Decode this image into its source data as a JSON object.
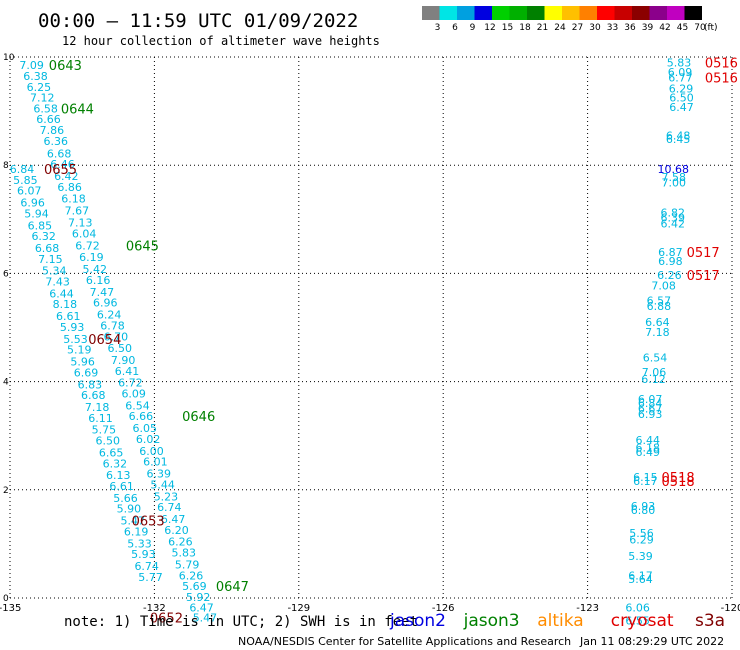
{
  "header": {
    "title": "00:00 – 11:59 UTC 01/09/2022",
    "subtitle": "12 hour collection of altimeter wave heights"
  },
  "colorbar": {
    "unit": "(ft)",
    "labels": [
      "3",
      "6",
      "9",
      "12",
      "15",
      "18",
      "21",
      "24",
      "27",
      "30",
      "33",
      "36",
      "39",
      "42",
      "45",
      "70"
    ],
    "colors": [
      "#808080",
      "#00e5e5",
      "#00a0e0",
      "#0000e0",
      "#00d000",
      "#00b000",
      "#008000",
      "#ffff00",
      "#ffc000",
      "#ff8000",
      "#ff0000",
      "#c80000",
      "#8b0000",
      "#8b008b",
      "#c000c0",
      "#000000"
    ]
  },
  "chart_data": {
    "type": "scatter",
    "xlim": [
      -135,
      -120
    ],
    "ylim": [
      0,
      10
    ],
    "x_ticks": [
      "-135",
      "-132",
      "-129",
      "-126",
      "-123",
      "-120"
    ],
    "y_ticks": [
      "0",
      "2",
      "4",
      "6",
      "8",
      "10"
    ],
    "grid": true,
    "points": [
      {
        "x": -134.55,
        "y": 9.85,
        "v": "7.09",
        "c": "#00b8e0"
      },
      {
        "x": -134.47,
        "y": 9.65,
        "v": "6.38",
        "c": "#00b8e0"
      },
      {
        "x": -134.4,
        "y": 9.45,
        "v": "6.25",
        "c": "#00b8e0"
      },
      {
        "x": -134.33,
        "y": 9.25,
        "v": "7.12",
        "c": "#00b8e0"
      },
      {
        "x": -134.26,
        "y": 9.05,
        "v": "6.58",
        "c": "#00b8e0"
      },
      {
        "x": -134.2,
        "y": 8.85,
        "v": "6.66",
        "c": "#00b8e0"
      },
      {
        "x": -134.13,
        "y": 8.65,
        "v": "7.86",
        "c": "#00b8e0"
      },
      {
        "x": -134.05,
        "y": 8.45,
        "v": "6.36",
        "c": "#00b8e0"
      },
      {
        "x": -133.98,
        "y": 8.22,
        "v": "6.68",
        "c": "#00b8e0"
      },
      {
        "x": -133.91,
        "y": 8.02,
        "v": "6.46",
        "c": "#00b8e0"
      },
      {
        "x": -133.83,
        "y": 7.8,
        "v": "6.42",
        "c": "#00b8e0"
      },
      {
        "x": -133.76,
        "y": 7.6,
        "v": "6.86",
        "c": "#00b8e0"
      },
      {
        "x": -133.68,
        "y": 7.38,
        "v": "6.18",
        "c": "#00b8e0"
      },
      {
        "x": -133.61,
        "y": 7.16,
        "v": "7.67",
        "c": "#00b8e0"
      },
      {
        "x": -133.54,
        "y": 6.94,
        "v": "7.13",
        "c": "#00b8e0"
      },
      {
        "x": -133.46,
        "y": 6.74,
        "v": "6.04",
        "c": "#00b8e0"
      },
      {
        "x": -133.39,
        "y": 6.52,
        "v": "6.72",
        "c": "#00b8e0"
      },
      {
        "x": -133.31,
        "y": 6.3,
        "v": "6.19",
        "c": "#00b8e0"
      },
      {
        "x": -133.24,
        "y": 6.08,
        "v": "5.42",
        "c": "#00b8e0"
      },
      {
        "x": -133.17,
        "y": 5.88,
        "v": "6.16",
        "c": "#00b8e0"
      },
      {
        "x": -133.09,
        "y": 5.66,
        "v": "7.47",
        "c": "#00b8e0"
      },
      {
        "x": -133.02,
        "y": 5.46,
        "v": "6.96",
        "c": "#00b8e0"
      },
      {
        "x": -132.94,
        "y": 5.24,
        "v": "6.24",
        "c": "#00b8e0"
      },
      {
        "x": -132.87,
        "y": 5.04,
        "v": "6.78",
        "c": "#00b8e0"
      },
      {
        "x": -132.8,
        "y": 4.83,
        "v": "6.70",
        "c": "#00b8e0"
      },
      {
        "x": -132.72,
        "y": 4.62,
        "v": "6.50",
        "c": "#00b8e0"
      },
      {
        "x": -132.65,
        "y": 4.4,
        "v": "7.90",
        "c": "#00b8e0"
      },
      {
        "x": -132.57,
        "y": 4.2,
        "v": "6.41",
        "c": "#00b8e0"
      },
      {
        "x": -132.5,
        "y": 3.98,
        "v": "6.72",
        "c": "#00b8e0"
      },
      {
        "x": -132.43,
        "y": 3.78,
        "v": "6.09",
        "c": "#00b8e0"
      },
      {
        "x": -132.35,
        "y": 3.56,
        "v": "6.54",
        "c": "#00b8e0"
      },
      {
        "x": -132.28,
        "y": 3.36,
        "v": "6.66",
        "c": "#00b8e0"
      },
      {
        "x": -132.2,
        "y": 3.14,
        "v": "6.05",
        "c": "#00b8e0"
      },
      {
        "x": -132.13,
        "y": 2.94,
        "v": "6.02",
        "c": "#00b8e0"
      },
      {
        "x": -132.06,
        "y": 2.72,
        "v": "6.00",
        "c": "#00b8e0"
      },
      {
        "x": -131.98,
        "y": 2.52,
        "v": "6.01",
        "c": "#00b8e0"
      },
      {
        "x": -131.91,
        "y": 2.3,
        "v": "6.39",
        "c": "#00b8e0"
      },
      {
        "x": -131.83,
        "y": 2.1,
        "v": "5.44",
        "c": "#00b8e0"
      },
      {
        "x": -131.76,
        "y": 1.88,
        "v": "5.23",
        "c": "#00b8e0"
      },
      {
        "x": -131.69,
        "y": 1.68,
        "v": "6.74",
        "c": "#00b8e0"
      },
      {
        "x": -131.61,
        "y": 1.46,
        "v": "6.47",
        "c": "#00b8e0"
      },
      {
        "x": -131.54,
        "y": 1.26,
        "v": "6.20",
        "c": "#00b8e0"
      },
      {
        "x": -131.46,
        "y": 1.04,
        "v": "6.26",
        "c": "#00b8e0"
      },
      {
        "x": -131.39,
        "y": 0.84,
        "v": "5.83",
        "c": "#00b8e0"
      },
      {
        "x": -131.32,
        "y": 0.62,
        "v": "5.79",
        "c": "#00b8e0"
      },
      {
        "x": -131.24,
        "y": 0.42,
        "v": "6.26",
        "c": "#00b8e0"
      },
      {
        "x": -131.17,
        "y": 0.22,
        "v": "5.69",
        "c": "#00b8e0"
      },
      {
        "x": -131.09,
        "y": 0.02,
        "v": "5.92",
        "c": "#00b8e0"
      },
      {
        "x": -131.02,
        "y": -0.18,
        "v": "6.47",
        "c": "#00b8e0"
      },
      {
        "x": -130.95,
        "y": -0.36,
        "v": "5.47",
        "c": "#00b8e0"
      },
      {
        "x": -134.75,
        "y": 7.93,
        "v": "6.84",
        "c": "#00b8e0"
      },
      {
        "x": -134.68,
        "y": 7.73,
        "v": "5.85",
        "c": "#00b8e0"
      },
      {
        "x": -134.6,
        "y": 7.53,
        "v": "6.07",
        "c": "#00b8e0"
      },
      {
        "x": -134.53,
        "y": 7.31,
        "v": "6.96",
        "c": "#00b8e0"
      },
      {
        "x": -134.45,
        "y": 7.11,
        "v": "5.94",
        "c": "#00b8e0"
      },
      {
        "x": -134.38,
        "y": 6.89,
        "v": "6.85",
        "c": "#00b8e0"
      },
      {
        "x": -134.3,
        "y": 6.69,
        "v": "6.32",
        "c": "#00b8e0"
      },
      {
        "x": -134.23,
        "y": 6.47,
        "v": "6.68",
        "c": "#00b8e0"
      },
      {
        "x": -134.16,
        "y": 6.27,
        "v": "7.15",
        "c": "#00b8e0"
      },
      {
        "x": -134.08,
        "y": 6.05,
        "v": "5.34",
        "c": "#00b8e0"
      },
      {
        "x": -134.01,
        "y": 5.85,
        "v": "7.43",
        "c": "#00b8e0"
      },
      {
        "x": -133.93,
        "y": 5.63,
        "v": "6.44",
        "c": "#00b8e0"
      },
      {
        "x": -133.86,
        "y": 5.43,
        "v": "8.18",
        "c": "#00b8e0"
      },
      {
        "x": -133.79,
        "y": 5.21,
        "v": "6.61",
        "c": "#00b8e0"
      },
      {
        "x": -133.71,
        "y": 5.01,
        "v": "5.93",
        "c": "#00b8e0"
      },
      {
        "x": -133.64,
        "y": 4.79,
        "v": "5.53",
        "c": "#00b8e0"
      },
      {
        "x": -133.56,
        "y": 4.59,
        "v": "5.19",
        "c": "#00b8e0"
      },
      {
        "x": -133.49,
        "y": 4.37,
        "v": "5.96",
        "c": "#00b8e0"
      },
      {
        "x": -133.42,
        "y": 4.17,
        "v": "6.69",
        "c": "#00b8e0"
      },
      {
        "x": -133.34,
        "y": 3.95,
        "v": "6.83",
        "c": "#00b8e0"
      },
      {
        "x": -133.27,
        "y": 3.75,
        "v": "6.68",
        "c": "#00b8e0"
      },
      {
        "x": -133.19,
        "y": 3.53,
        "v": "7.18",
        "c": "#00b8e0"
      },
      {
        "x": -133.12,
        "y": 3.33,
        "v": "6.11",
        "c": "#00b8e0"
      },
      {
        "x": -133.05,
        "y": 3.11,
        "v": "5.75",
        "c": "#00b8e0"
      },
      {
        "x": -132.97,
        "y": 2.91,
        "v": "6.50",
        "c": "#00b8e0"
      },
      {
        "x": -132.9,
        "y": 2.69,
        "v": "6.65",
        "c": "#00b8e0"
      },
      {
        "x": -132.82,
        "y": 2.49,
        "v": "6.32",
        "c": "#00b8e0"
      },
      {
        "x": -132.75,
        "y": 2.27,
        "v": "6.13",
        "c": "#00b8e0"
      },
      {
        "x": -132.68,
        "y": 2.07,
        "v": "6.61",
        "c": "#00b8e0"
      },
      {
        "x": -132.6,
        "y": 1.85,
        "v": "5.66",
        "c": "#00b8e0"
      },
      {
        "x": -132.53,
        "y": 1.65,
        "v": "5.90",
        "c": "#00b8e0"
      },
      {
        "x": -132.45,
        "y": 1.43,
        "v": "5.47",
        "c": "#00b8e0"
      },
      {
        "x": -132.38,
        "y": 1.23,
        "v": "6.19",
        "c": "#00b8e0"
      },
      {
        "x": -132.31,
        "y": 1.01,
        "v": "5.33",
        "c": "#00b8e0"
      },
      {
        "x": -132.23,
        "y": 0.81,
        "v": "5.93",
        "c": "#00b8e0"
      },
      {
        "x": -132.16,
        "y": 0.59,
        "v": "6.74",
        "c": "#00b8e0"
      },
      {
        "x": -132.08,
        "y": 0.39,
        "v": "5.77",
        "c": "#00b8e0"
      },
      {
        "x": -121.1,
        "y": 9.9,
        "v": "5.83",
        "c": "#00b8e0"
      },
      {
        "x": -121.08,
        "y": 9.72,
        "v": "6.09",
        "c": "#00b8e0"
      },
      {
        "x": -121.07,
        "y": 9.62,
        "v": "6.77",
        "c": "#00b8e0"
      },
      {
        "x": -121.06,
        "y": 9.42,
        "v": "6.29",
        "c": "#00b8e0"
      },
      {
        "x": -121.05,
        "y": 9.25,
        "v": "6.50",
        "c": "#00b8e0"
      },
      {
        "x": -121.05,
        "y": 9.08,
        "v": "6.47",
        "c": "#00b8e0"
      },
      {
        "x": -121.12,
        "y": 8.55,
        "v": "6.48",
        "c": "#00b8e0"
      },
      {
        "x": -121.12,
        "y": 8.48,
        "v": "6.45",
        "c": "#00b8e0"
      },
      {
        "x": -121.22,
        "y": 7.93,
        "v": "10.68",
        "c": "#0000e0"
      },
      {
        "x": -121.21,
        "y": 7.78,
        "v": "7.58",
        "c": "#00b8e0"
      },
      {
        "x": -121.21,
        "y": 7.68,
        "v": "7.00",
        "c": "#00b8e0"
      },
      {
        "x": -121.23,
        "y": 7.13,
        "v": "6.82",
        "c": "#00b8e0"
      },
      {
        "x": -121.23,
        "y": 7.03,
        "v": "6.39",
        "c": "#00b8e0"
      },
      {
        "x": -121.23,
        "y": 6.92,
        "v": "6.42",
        "c": "#00b8e0"
      },
      {
        "x": -121.28,
        "y": 6.4,
        "v": "6.87",
        "c": "#00b8e0"
      },
      {
        "x": -121.28,
        "y": 6.23,
        "v": "6.98",
        "c": "#00b8e0"
      },
      {
        "x": -121.3,
        "y": 5.97,
        "v": "6.26",
        "c": "#00b8e0"
      },
      {
        "x": -121.42,
        "y": 5.78,
        "v": "7.08",
        "c": "#00b8e0"
      },
      {
        "x": -121.52,
        "y": 5.5,
        "v": "6.57",
        "c": "#00b8e0"
      },
      {
        "x": -121.52,
        "y": 5.4,
        "v": "6.88",
        "c": "#00b8e0"
      },
      {
        "x": -121.55,
        "y": 5.1,
        "v": "6.64",
        "c": "#00b8e0"
      },
      {
        "x": -121.55,
        "y": 4.92,
        "v": "7.18",
        "c": "#00b8e0"
      },
      {
        "x": -121.6,
        "y": 4.45,
        "v": "6.54",
        "c": "#00b8e0"
      },
      {
        "x": -121.62,
        "y": 4.18,
        "v": "7.06",
        "c": "#00b8e0"
      },
      {
        "x": -121.63,
        "y": 4.05,
        "v": "6.12",
        "c": "#00b8e0"
      },
      {
        "x": -121.7,
        "y": 3.68,
        "v": "6.07",
        "c": "#00b8e0"
      },
      {
        "x": -121.7,
        "y": 3.6,
        "v": "6.84",
        "c": "#00b8e0"
      },
      {
        "x": -121.7,
        "y": 3.5,
        "v": "6.67",
        "c": "#00b8e0"
      },
      {
        "x": -121.7,
        "y": 3.4,
        "v": "6.93",
        "c": "#00b8e0"
      },
      {
        "x": -121.75,
        "y": 2.92,
        "v": "6.44",
        "c": "#00b8e0"
      },
      {
        "x": -121.75,
        "y": 2.78,
        "v": "6.18",
        "c": "#00b8e0"
      },
      {
        "x": -121.75,
        "y": 2.7,
        "v": "6.49",
        "c": "#00b8e0"
      },
      {
        "x": -121.8,
        "y": 2.24,
        "v": "6.15",
        "c": "#00b8e0"
      },
      {
        "x": -121.8,
        "y": 2.16,
        "v": "6.17",
        "c": "#00b8e0"
      },
      {
        "x": -121.85,
        "y": 1.7,
        "v": "6.93",
        "c": "#00b8e0"
      },
      {
        "x": -121.85,
        "y": 1.63,
        "v": "6.80",
        "c": "#00b8e0"
      },
      {
        "x": -121.88,
        "y": 1.2,
        "v": "5.56",
        "c": "#00b8e0"
      },
      {
        "x": -121.88,
        "y": 1.08,
        "v": "6.29",
        "c": "#00b8e0"
      },
      {
        "x": -121.9,
        "y": 0.78,
        "v": "5.39",
        "c": "#00b8e0"
      },
      {
        "x": -121.9,
        "y": 0.42,
        "v": "6.17",
        "c": "#00b8e0"
      },
      {
        "x": -121.9,
        "y": 0.35,
        "v": "5.64",
        "c": "#00b8e0"
      },
      {
        "x": -121.96,
        "y": -0.18,
        "v": "6.06",
        "c": "#00b8e0"
      },
      {
        "x": -121.96,
        "y": -0.42,
        "v": "6.55",
        "c": "#00b8e0"
      }
    ],
    "time_labels": [
      {
        "x": -133.85,
        "y": 9.85,
        "t": "0643",
        "c": "#008000"
      },
      {
        "x": -133.6,
        "y": 9.05,
        "t": "0644",
        "c": "#008000"
      },
      {
        "x": -133.95,
        "y": 7.93,
        "t": "0655",
        "c": "#800000"
      },
      {
        "x": -132.25,
        "y": 6.52,
        "t": "0645",
        "c": "#008000"
      },
      {
        "x": -133.03,
        "y": 4.79,
        "t": "0654",
        "c": "#800000"
      },
      {
        "x": -131.08,
        "y": 3.36,
        "t": "0646",
        "c": "#008000"
      },
      {
        "x": -132.13,
        "y": 1.43,
        "t": "0653",
        "c": "#800000"
      },
      {
        "x": -130.38,
        "y": 0.22,
        "t": "0647",
        "c": "#008000"
      },
      {
        "x": -131.75,
        "y": -0.36,
        "t": "0652",
        "c": "#800000"
      },
      {
        "x": -120.22,
        "y": 9.9,
        "t": "0516",
        "c": "#e00000"
      },
      {
        "x": -120.22,
        "y": 9.62,
        "t": "0516",
        "c": "#e00000"
      },
      {
        "x": -120.6,
        "y": 6.4,
        "t": "0517",
        "c": "#e00000"
      },
      {
        "x": -120.6,
        "y": 5.97,
        "t": "0517",
        "c": "#e00000"
      },
      {
        "x": -121.12,
        "y": 2.24,
        "t": "0518",
        "c": "#e00000"
      },
      {
        "x": -121.12,
        "y": 2.16,
        "t": "0518",
        "c": "#e00000"
      }
    ]
  },
  "footer": {
    "note": "note:  1) Time is in UTC;  2) SWH is in feet",
    "legend": [
      {
        "name": "jason2",
        "color": "#0000e0"
      },
      {
        "name": "jason3",
        "color": "#008000"
      },
      {
        "name": "altika",
        "color": "#ff8c00"
      },
      {
        "name": "cryosat",
        "color": "#e00000"
      },
      {
        "name": "s3a",
        "color": "#800000"
      }
    ],
    "credit": "NOAA/NESDIS Center for Satellite Applications and Research",
    "timestamp": "Jan 11 08:29:29 UTC 2022"
  }
}
